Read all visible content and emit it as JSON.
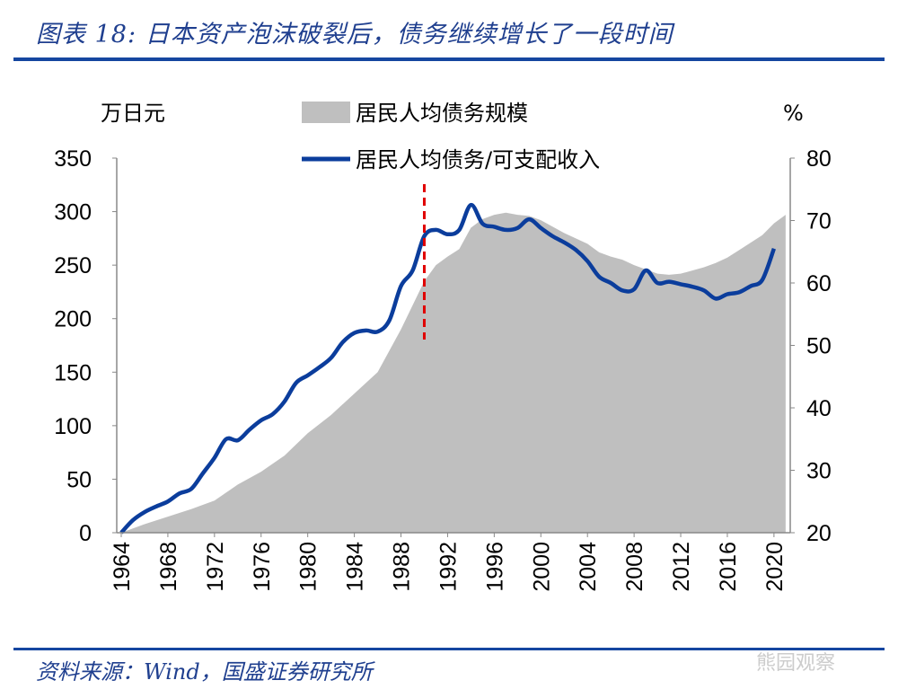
{
  "title": "图表 18: 日本资产泡沫破裂后，债务继续增长了一段时间",
  "source": "资料来源：Wind，国盛证券研究所",
  "watermark": "熊园观察",
  "chart_data": {
    "type": "area+line",
    "left_axis_label": "万日元",
    "right_axis_label": "%",
    "left_ylim": [
      0,
      350
    ],
    "right_ylim": [
      20,
      80
    ],
    "left_ticks": [
      0,
      50,
      100,
      150,
      200,
      250,
      300,
      350
    ],
    "right_ticks": [
      20,
      30,
      40,
      50,
      60,
      70,
      80
    ],
    "x_ticks": [
      1964,
      1968,
      1972,
      1976,
      1980,
      1984,
      1988,
      1992,
      1996,
      2000,
      2004,
      2008,
      2012,
      2016,
      2020
    ],
    "annotation": {
      "type": "vertical-dashed-line",
      "x": 1990,
      "color": "#e00000"
    },
    "series": [
      {
        "name": "居民人均债务规模",
        "type": "area",
        "axis": "left",
        "color": "#bfbfbf",
        "x": [
          1964,
          1966,
          1968,
          1970,
          1972,
          1974,
          1976,
          1978,
          1980,
          1982,
          1984,
          1986,
          1988,
          1990,
          1991,
          1992,
          1993,
          1994,
          1995,
          1996,
          1997,
          1998,
          1999,
          2000,
          2001,
          2002,
          2003,
          2004,
          2005,
          2006,
          2007,
          2008,
          2009,
          2010,
          2011,
          2012,
          2013,
          2014,
          2015,
          2016,
          2017,
          2018,
          2019,
          2020,
          2021
        ],
        "values": [
          0,
          8,
          15,
          22,
          30,
          45,
          57,
          72,
          93,
          110,
          130,
          150,
          190,
          235,
          250,
          258,
          265,
          285,
          293,
          297,
          299,
          297,
          296,
          292,
          286,
          280,
          275,
          270,
          262,
          258,
          255,
          250,
          246,
          242,
          241,
          242,
          245,
          248,
          252,
          257,
          264,
          271,
          278,
          289,
          297
        ]
      },
      {
        "name": "居民人均债务/可支配收入",
        "type": "line",
        "axis": "right",
        "color": "#0b3d9c",
        "x": [
          1964,
          1965,
          1966,
          1967,
          1968,
          1969,
          1970,
          1971,
          1972,
          1973,
          1974,
          1975,
          1976,
          1977,
          1978,
          1979,
          1980,
          1981,
          1982,
          1983,
          1984,
          1985,
          1986,
          1987,
          1988,
          1989,
          1990,
          1991,
          1992,
          1993,
          1994,
          1995,
          1996,
          1997,
          1998,
          1999,
          2000,
          2001,
          2002,
          2003,
          2004,
          2005,
          2006,
          2007,
          2008,
          2009,
          2010,
          2011,
          2012,
          2013,
          2014,
          2015,
          2016,
          2017,
          2018,
          2019,
          2020
        ],
        "values": [
          20,
          22,
          23.3,
          24.2,
          25,
          26.3,
          27,
          29.5,
          32,
          35,
          34.8,
          36.5,
          38,
          39,
          41,
          44,
          45.2,
          46.5,
          48,
          50.5,
          52,
          52.4,
          52.2,
          54,
          59.5,
          62,
          67.5,
          68.5,
          67.8,
          68.5,
          72.5,
          69.5,
          69,
          68.5,
          68.8,
          70.2,
          68.8,
          67.5,
          66.5,
          65.3,
          63.5,
          61,
          60,
          58.8,
          59,
          62,
          60,
          60.2,
          59.8,
          59.4,
          58.8,
          57.5,
          58.2,
          58.5,
          59.5,
          60.5,
          65.5
        ]
      }
    ]
  }
}
